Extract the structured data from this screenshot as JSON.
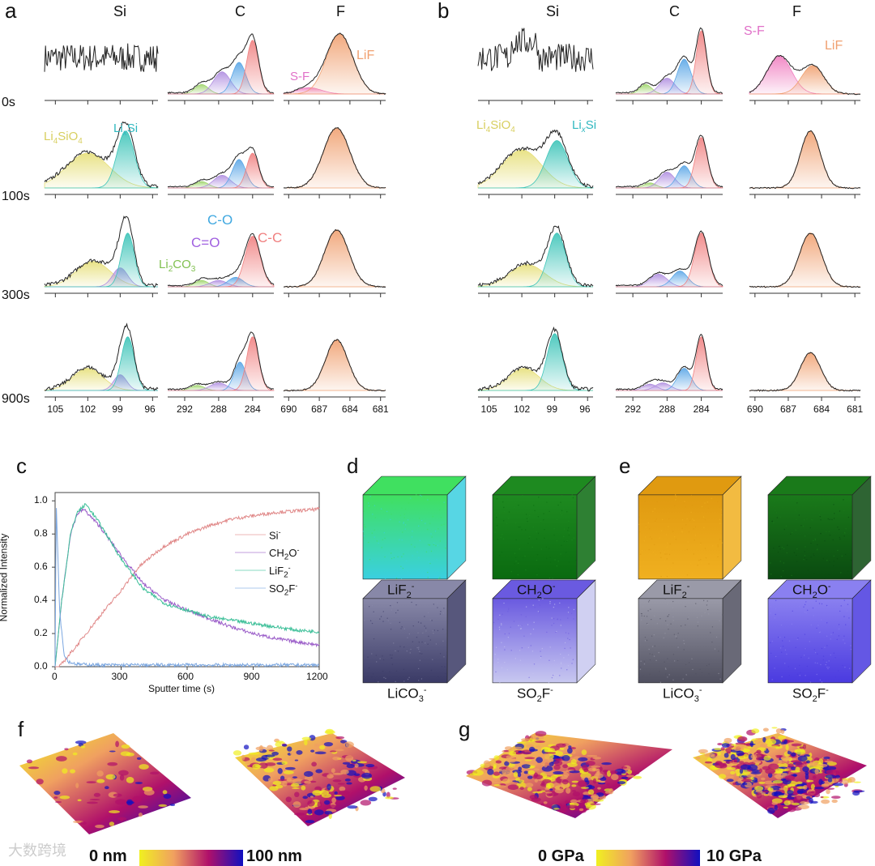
{
  "panels": {
    "a": "a",
    "b": "b",
    "c": "c",
    "d": "d",
    "e": "e",
    "f": "f",
    "g": "g"
  },
  "xps": {
    "columns": [
      "Si",
      "C",
      "F"
    ],
    "rows": [
      "0s",
      "100s",
      "300s",
      "900s"
    ],
    "ticks": {
      "Si": [
        "105",
        "102",
        "99",
        "96"
      ],
      "C": [
        "292",
        "288",
        "284"
      ],
      "F": [
        "690",
        "687",
        "684",
        "681"
      ]
    },
    "annotations_a": {
      "LiF": "LiF",
      "SF": "S-F",
      "Li4SiO4": "Li4SiO4",
      "LixSi": "LixSi",
      "CO": "C-O",
      "C2O": "C=O",
      "CC": "C-C",
      "Li2CO3": "Li2CO3"
    },
    "annotations_b": {
      "SF": "S-F",
      "LiF": "LiF",
      "Li4SiO4": "Li4SiO4",
      "LixSi": "LixSi"
    },
    "colors": {
      "Li4SiO4": "#e6df7a",
      "LixSi": "#3cc4b8",
      "CC": "#f08080",
      "CO": "#5aa6e6",
      "C2O": "#b08ee0",
      "Li2CO3": "#9ed46a",
      "LiF": "#f0a070",
      "SF": "#f07ec0"
    }
  },
  "chart_data": [
    {
      "type": "line",
      "title": "",
      "xlabel": "Sputter time (s)",
      "ylabel": "Normalized Intensity",
      "xlim": [
        0,
        1200
      ],
      "ylim": [
        0,
        1.05
      ],
      "xticks": [
        "0",
        "300",
        "600",
        "900",
        "1200"
      ],
      "yticks": [
        "0.0",
        "0.2",
        "0.4",
        "0.6",
        "0.8",
        "1.0"
      ],
      "legend_position": "right",
      "series": [
        {
          "name": "Si-",
          "label": "Si",
          "sup": "-",
          "color": "#e08888",
          "x": [
            0,
            20,
            100,
            200,
            300,
            380,
            450,
            500,
            600,
            700,
            800,
            900,
            1000,
            1100,
            1200
          ],
          "y": [
            0,
            0,
            0.13,
            0.3,
            0.46,
            0.6,
            0.68,
            0.73,
            0.8,
            0.85,
            0.89,
            0.91,
            0.93,
            0.94,
            0.95
          ]
        },
        {
          "name": "CH2O-",
          "label": "CH2O",
          "sup": "-",
          "color": "#9a5cc8",
          "x": [
            0,
            30,
            70,
            100,
            130,
            200,
            300,
            400,
            500,
            600,
            700,
            800,
            900,
            1000,
            1100,
            1200
          ],
          "y": [
            0,
            0.4,
            0.8,
            0.92,
            0.95,
            0.85,
            0.67,
            0.5,
            0.4,
            0.34,
            0.29,
            0.24,
            0.2,
            0.17,
            0.15,
            0.13
          ]
        },
        {
          "name": "LiF2-",
          "label": "LiF2",
          "sup": "-",
          "color": "#3cbf98",
          "x": [
            0,
            30,
            70,
            100,
            140,
            200,
            300,
            400,
            500,
            600,
            700,
            800,
            900,
            1000,
            1100,
            1200
          ],
          "y": [
            0,
            0.4,
            0.8,
            0.93,
            0.98,
            0.87,
            0.65,
            0.47,
            0.38,
            0.34,
            0.3,
            0.28,
            0.26,
            0.24,
            0.22,
            0.21
          ]
        },
        {
          "name": "SO2F-",
          "label": "SO2F",
          "sup": "-",
          "color": "#7aa6e0",
          "x": [
            0,
            5,
            20,
            40,
            60,
            100,
            200,
            400,
            800,
            1200
          ],
          "y": [
            0,
            1.0,
            0.35,
            0.08,
            0.03,
            0.015,
            0.01,
            0.01,
            0.01,
            0.01
          ]
        }
      ]
    },
    {
      "type": "xps-spectra",
      "panel": "a",
      "peaks": {
        "0s": {
          "Si": [],
          "C": [
            [
              290,
              0.15,
              0.8,
              "Li2CO3"
            ],
            [
              287.6,
              0.35,
              1,
              "C2O"
            ],
            [
              285.6,
              0.5,
              0.8,
              "CO"
            ],
            [
              284,
              0.85,
              0.7,
              "CC"
            ]
          ],
          "F": [
            [
              688,
              0.1,
              1.2,
              "SF"
            ],
            [
              685,
              0.95,
              1.3,
              "LiF"
            ]
          ]
        },
        "100s": {
          "Si": [
            [
              102,
              0.55,
              2,
              "Li4SiO4"
            ],
            [
              98.5,
              0.9,
              0.8,
              "LixSi"
            ]
          ],
          "C": [
            [
              290,
              0.1,
              0.8,
              "Li2CO3"
            ],
            [
              287.6,
              0.2,
              1,
              "C2O"
            ],
            [
              285.6,
              0.45,
              0.8,
              "CO"
            ],
            [
              284,
              0.55,
              0.7,
              "CC"
            ]
          ],
          "F": [
            [
              685.3,
              0.95,
              1.3,
              "LiF"
            ]
          ]
        },
        "300s": {
          "Si": [
            [
              101.5,
              0.4,
              1.6,
              "Li4SiO4"
            ],
            [
              99,
              0.3,
              0.7,
              "C2O"
            ],
            [
              98.3,
              0.85,
              0.6,
              "LixSi"
            ]
          ],
          "C": [
            [
              290,
              0.1,
              0.8,
              "Li2CO3"
            ],
            [
              288,
              0.1,
              1,
              "C2O"
            ],
            [
              286,
              0.15,
              0.9,
              "CO"
            ],
            [
              284,
              0.8,
              0.9,
              "CC"
            ]
          ],
          "F": [
            [
              685.3,
              0.9,
              1.2,
              "LiF"
            ]
          ]
        },
        "900s": {
          "Si": [
            [
              102,
              0.35,
              1.4,
              "Li4SiO4"
            ],
            [
              99,
              0.25,
              0.6,
              "C2O"
            ],
            [
              98.3,
              0.85,
              0.6,
              "LixSi"
            ]
          ],
          "C": [
            [
              290.5,
              0.08,
              0.8,
              "Li2CO3"
            ],
            [
              288,
              0.12,
              1,
              "C2O"
            ],
            [
              285.5,
              0.45,
              0.7,
              "CO"
            ],
            [
              284,
              0.85,
              0.7,
              "CC"
            ]
          ],
          "F": [
            [
              685.3,
              0.8,
              1.1,
              "LiF"
            ]
          ]
        }
      }
    },
    {
      "type": "xps-spectra",
      "panel": "b",
      "peaks": {
        "0s": {
          "Si": [],
          "C": [
            [
              290.5,
              0.15,
              0.7,
              "Li2CO3"
            ],
            [
              288,
              0.25,
              0.9,
              "C2O"
            ],
            [
              286,
              0.55,
              0.8,
              "CO"
            ],
            [
              284,
              1,
              0.6,
              "CC"
            ]
          ],
          "F": [
            [
              687.8,
              0.6,
              1.1,
              "SF"
            ],
            [
              684.8,
              0.45,
              1,
              "LiF"
            ]
          ]
        },
        "100s": {
          "Si": [
            [
              102,
              0.6,
              1.8,
              "Li4SiO4"
            ],
            [
              98.8,
              0.75,
              1,
              "LixSi"
            ]
          ],
          "C": [
            [
              290,
              0.08,
              0.7,
              "Li2CO3"
            ],
            [
              288,
              0.25,
              0.9,
              "C2O"
            ],
            [
              286,
              0.35,
              0.8,
              "CO"
            ],
            [
              284,
              0.8,
              0.7,
              "CC"
            ]
          ],
          "F": [
            [
              685,
              0.9,
              0.9,
              "LiF"
            ]
          ]
        },
        "300s": {
          "Si": [
            [
              101.5,
              0.35,
              1.6,
              "Li4SiO4"
            ],
            [
              98.8,
              0.85,
              0.8,
              "LixSi"
            ]
          ],
          "C": [
            [
              289,
              0.2,
              1,
              "C2O"
            ],
            [
              286.5,
              0.25,
              0.9,
              "CO"
            ],
            [
              284,
              0.85,
              0.8,
              "CC"
            ]
          ],
          "F": [
            [
              685,
              0.85,
              1,
              "LiF"
            ]
          ]
        },
        "900s": {
          "Si": [
            [
              101.8,
              0.35,
              1.4,
              "Li4SiO4"
            ],
            [
              99,
              0.9,
              0.7,
              "LixSi"
            ]
          ],
          "C": [
            [
              290,
              0.1,
              0.8,
              "C2O"
            ],
            [
              288.5,
              0.12,
              0.9,
              "C2O"
            ],
            [
              286,
              0.35,
              0.8,
              "CO"
            ],
            [
              284,
              0.85,
              0.6,
              "CC"
            ]
          ],
          "F": [
            [
              685,
              0.6,
              0.9,
              "LiF"
            ]
          ]
        }
      }
    }
  ],
  "tof": {
    "d": [
      {
        "label": "LiF",
        "sub": "2",
        "sup": "-",
        "colors": [
          "#3ad0e0",
          "#40e060"
        ]
      },
      {
        "label": "CH",
        "sub": "2",
        "tail": "O",
        "sup": "-",
        "colors": [
          "#0a6a10",
          "#1e8a20"
        ]
      },
      {
        "label": "LiCO",
        "sub": "3",
        "sup": "-",
        "colors": [
          "#3a3a66",
          "#8888a8"
        ]
      },
      {
        "label": "SO",
        "sub": "2",
        "tail": "F",
        "sup": "-",
        "colors": [
          "#c8c8f0",
          "#6a5ae0"
        ]
      }
    ],
    "e": [
      {
        "label": "LiF",
        "sub": "2",
        "sup": "-",
        "colors": [
          "#f0b020",
          "#e09a10"
        ]
      },
      {
        "label": "CH",
        "sub": "2",
        "tail": "O",
        "sup": "-",
        "colors": [
          "#0a4a10",
          "#1a7a1a"
        ]
      },
      {
        "label": "LiCO",
        "sub": "3",
        "sup": "-",
        "colors": [
          "#505060",
          "#9a9aa8"
        ]
      },
      {
        "label": "SO",
        "sub": "2",
        "tail": "F",
        "sup": "-",
        "colors": [
          "#4a3ae0",
          "#8a80f0"
        ]
      }
    ]
  },
  "colorbars": {
    "f": {
      "min": "0 nm",
      "max": "100 nm",
      "value_range": [
        0,
        100
      ],
      "unit": "nm"
    },
    "g": {
      "min": "0 GPa",
      "max": "10 GPa",
      "value_range": [
        0,
        10
      ],
      "unit": "GPa"
    },
    "gradient": [
      "#f0f020",
      "#f0a060",
      "#b0106a",
      "#1010c0"
    ]
  },
  "watermark": "大数跨境"
}
